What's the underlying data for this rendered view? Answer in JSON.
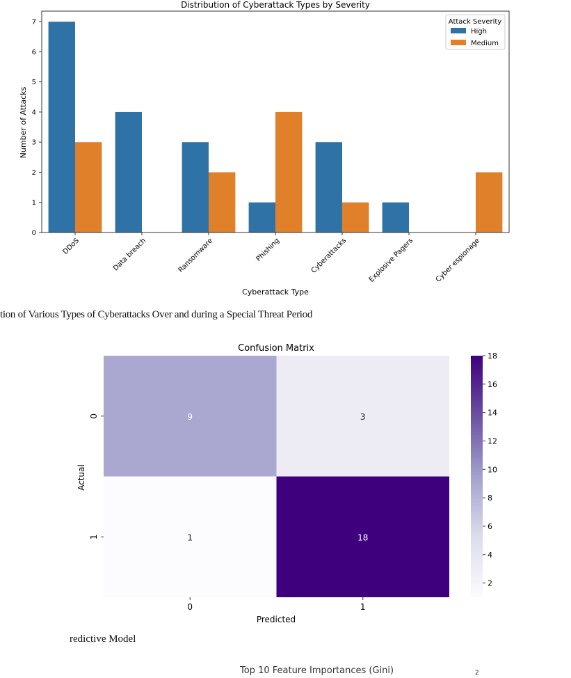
{
  "chart_data": [
    {
      "type": "bar",
      "title": "Distribution of Cyberattack Types by Severity",
      "xlabel": "Cyberattack Type",
      "ylabel": "Number of Attacks",
      "categories": [
        "DDoS",
        "Data breach",
        "Ransomware",
        "Phishing",
        "Cyberattacks",
        "Explosive Pagers",
        "Cyber espionage"
      ],
      "series": [
        {
          "name": "High",
          "color": "#2f73a6",
          "values": [
            7,
            4,
            3,
            1,
            3,
            1,
            0
          ]
        },
        {
          "name": "Medium",
          "color": "#e0802b",
          "values": [
            3,
            0,
            2,
            4,
            1,
            0,
            2
          ]
        }
      ],
      "ylim": [
        0,
        7.35
      ],
      "yticks": [
        0,
        1,
        2,
        3,
        4,
        5,
        6,
        7
      ],
      "legend": {
        "title": "Attack Severity",
        "placement": "top-right"
      }
    },
    {
      "type": "heatmap",
      "title": "Confusion Matrix",
      "xlabel": "Predicted",
      "ylabel": "Actual",
      "x_labels": [
        "0",
        "1"
      ],
      "y_labels": [
        "0",
        "1"
      ],
      "matrix": [
        [
          9,
          3
        ],
        [
          1,
          18
        ]
      ],
      "colormap": "Purples",
      "colorbar": {
        "min": 1,
        "max": 18,
        "ticks": [
          2,
          4,
          6,
          8,
          10,
          12,
          14,
          16,
          18
        ]
      }
    }
  ],
  "captions": {
    "figure1": "tion of Various Types of Cyberattacks Over and during a Special Threat Period",
    "figure2": "redictive Model",
    "figure3_title": "Top 10 Feature Importances (Gini)",
    "figure3_tick": "2"
  }
}
